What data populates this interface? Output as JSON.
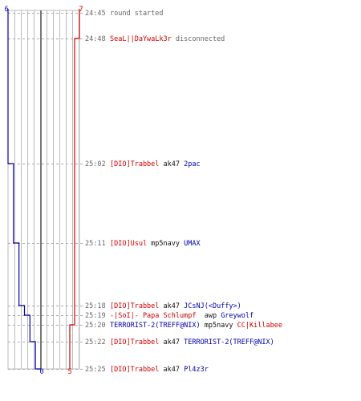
{
  "timeline": {
    "colors": {
      "blue_team": "#0000aa",
      "red_team": "#cc0000",
      "grid": "#bbbbbb",
      "center": "#777777",
      "text": "#666666"
    },
    "top_labels": {
      "blue": "6",
      "red": "7"
    },
    "bottom_labels": {
      "blue": "0",
      "red": "5"
    },
    "events": [
      {
        "time": "24:45",
        "parts": [
          {
            "t": "round started",
            "c": "gray"
          }
        ]
      },
      {
        "time": "24:48",
        "parts": [
          {
            "t": "SeaL||DaYwaLk3r",
            "c": "red"
          },
          {
            "t": " disconnected",
            "c": "gray"
          }
        ]
      },
      {
        "time": "25:02",
        "parts": [
          {
            "t": "[DIO]Trabbel",
            "c": "red"
          },
          {
            "t": " ak47 ",
            "c": "black"
          },
          {
            "t": "2pac",
            "c": "blue"
          }
        ]
      },
      {
        "time": "25:11",
        "parts": [
          {
            "t": "[DIO]Usul",
            "c": "red"
          },
          {
            "t": " mp5navy ",
            "c": "black"
          },
          {
            "t": "UMAX",
            "c": "blue"
          }
        ]
      },
      {
        "time": "25:18",
        "parts": [
          {
            "t": "[DIO]Trabbel",
            "c": "red"
          },
          {
            "t": " ak47 ",
            "c": "black"
          },
          {
            "t": "JCsNJ(<Duffy>)",
            "c": "blue"
          }
        ]
      },
      {
        "time": "25:19",
        "parts": [
          {
            "t": "-|SoI|- Papa Schlumpf",
            "c": "red"
          },
          {
            "t": "  awp ",
            "c": "black"
          },
          {
            "t": "Greywolf",
            "c": "blue"
          }
        ]
      },
      {
        "time": "25:20",
        "parts": [
          {
            "t": "TERRORIST-2(TREFF@NIX)",
            "c": "blue"
          },
          {
            "t": " mp5navy ",
            "c": "black"
          },
          {
            "t": "CC|Killabee",
            "c": "red"
          }
        ]
      },
      {
        "time": "25:22",
        "parts": [
          {
            "t": "[DIO]Trabbel",
            "c": "red"
          },
          {
            "t": " ak47 ",
            "c": "black"
          },
          {
            "t": "TERRORIST-2(TREFF@NIX)",
            "c": "blue"
          }
        ]
      },
      {
        "time": "25:25",
        "parts": [
          {
            "t": "[DIO]Trabbel",
            "c": "red"
          },
          {
            "t": " ak47 ",
            "c": "black"
          },
          {
            "t": "Pl4z3r",
            "c": "blue"
          }
        ]
      }
    ],
    "blue_team_alive": [
      6,
      6,
      5,
      4,
      3,
      2,
      2,
      1,
      0
    ],
    "red_team_alive": [
      7,
      6,
      6,
      6,
      6,
      6,
      5,
      5,
      5
    ]
  }
}
